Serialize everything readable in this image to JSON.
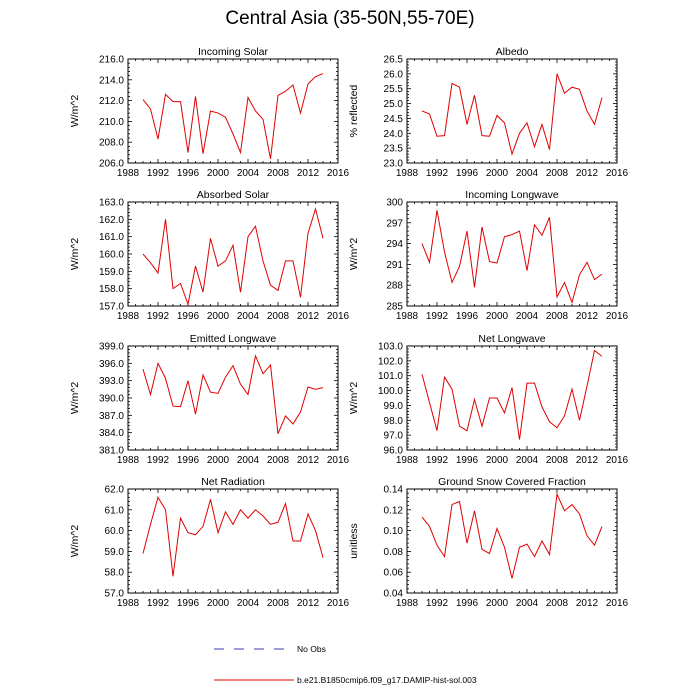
{
  "title": "Central Asia (35-50N,55-70E)",
  "legend": {
    "no_obs_label": "No Obs",
    "model_label": "b.e21.B1850cmip6.f09_g17.DAMIP-hist-sol.003",
    "no_obs_color": "#3b3bb0",
    "model_color": "#e00000"
  },
  "chart_data": [
    {
      "type": "line",
      "title": "Incoming Solar",
      "ylabel": "W/m^2",
      "xlim": [
        1988,
        2016
      ],
      "ylim": [
        206,
        216
      ],
      "xticks": [
        1988,
        1992,
        1996,
        2000,
        2004,
        2008,
        2012,
        2016
      ],
      "yticks": [
        "206.0",
        "208.0",
        "210.0",
        "212.0",
        "214.0",
        "216.0"
      ],
      "series": [
        {
          "color": "#e00000",
          "x": [
            1990,
            1991,
            1992,
            1993,
            1994,
            1995,
            1996,
            1997,
            1998,
            1999,
            2000,
            2001,
            2002,
            2003,
            2004,
            2005,
            2006,
            2007,
            2008,
            2009,
            2010,
            2011,
            2012,
            2013,
            2014
          ],
          "values": [
            212.1,
            211.2,
            208.3,
            212.6,
            211.9,
            211.9,
            207.0,
            212.4,
            206.9,
            211.0,
            210.8,
            210.4,
            208.8,
            207.0,
            212.3,
            211.0,
            210.2,
            206.4,
            212.5,
            212.9,
            213.5,
            210.8,
            213.6,
            214.3,
            214.6
          ]
        }
      ]
    },
    {
      "type": "line",
      "title": "Albedo",
      "ylabel": "% reflected",
      "xlim": [
        1988,
        2016
      ],
      "ylim": [
        23.0,
        26.5
      ],
      "xticks": [
        1988,
        1992,
        1996,
        2000,
        2004,
        2008,
        2012,
        2016
      ],
      "yticks": [
        "23.0",
        "23.5",
        "24.0",
        "24.5",
        "25.0",
        "25.5",
        "26.0",
        "26.5"
      ],
      "series": [
        {
          "color": "#e00000",
          "x": [
            1990,
            1991,
            1992,
            1993,
            1994,
            1995,
            1996,
            1997,
            1998,
            1999,
            2000,
            2001,
            2002,
            2003,
            2004,
            2005,
            2006,
            2007,
            2008,
            2009,
            2010,
            2011,
            2012,
            2013,
            2014
          ],
          "values": [
            24.75,
            24.65,
            23.9,
            23.92,
            25.68,
            25.55,
            24.3,
            25.28,
            23.92,
            23.9,
            24.6,
            24.35,
            23.3,
            24.0,
            24.35,
            23.55,
            24.3,
            23.45,
            26.0,
            25.35,
            25.55,
            25.48,
            24.75,
            24.3,
            25.2
          ]
        }
      ]
    },
    {
      "type": "line",
      "title": "Absorbed Solar",
      "ylabel": "W/m^2",
      "xlim": [
        1988,
        2016
      ],
      "ylim": [
        157,
        163
      ],
      "xticks": [
        1988,
        1992,
        1996,
        2000,
        2004,
        2008,
        2012,
        2016
      ],
      "yticks": [
        "157.0",
        "158.0",
        "159.0",
        "160.0",
        "161.0",
        "162.0",
        "163.0"
      ],
      "series": [
        {
          "color": "#e00000",
          "x": [
            1990,
            1991,
            1992,
            1993,
            1994,
            1995,
            1996,
            1997,
            1998,
            1999,
            2000,
            2001,
            2002,
            2003,
            2004,
            2005,
            2006,
            2007,
            2008,
            2009,
            2010,
            2011,
            2012,
            2013,
            2014
          ],
          "values": [
            160.0,
            159.5,
            158.9,
            162.0,
            158.0,
            158.3,
            157.1,
            159.3,
            157.8,
            160.9,
            159.3,
            159.6,
            160.5,
            157.8,
            161.0,
            161.6,
            159.6,
            158.2,
            157.9,
            159.6,
            159.6,
            157.5,
            161.2,
            162.6,
            160.9
          ]
        }
      ]
    },
    {
      "type": "line",
      "title": "Incoming Longwave",
      "ylabel": "W/m^2",
      "xlim": [
        1988,
        2016
      ],
      "ylim": [
        285,
        300
      ],
      "xticks": [
        1988,
        1992,
        1996,
        2000,
        2004,
        2008,
        2012,
        2016
      ],
      "yticks": [
        "285",
        "288",
        "291",
        "294",
        "297",
        "300"
      ],
      "series": [
        {
          "color": "#e00000",
          "x": [
            1990,
            1991,
            1992,
            1993,
            1994,
            1995,
            1996,
            1997,
            1998,
            1999,
            2000,
            2001,
            2002,
            2003,
            2004,
            2005,
            2006,
            2007,
            2008,
            2009,
            2010,
            2011,
            2012,
            2013,
            2014
          ],
          "values": [
            294.0,
            291.3,
            298.8,
            292.8,
            288.4,
            290.7,
            295.8,
            287.7,
            296.4,
            291.4,
            291.2,
            295.0,
            295.3,
            295.8,
            290.1,
            296.7,
            295.2,
            297.8,
            286.3,
            288.4,
            285.5,
            289.5,
            291.3,
            288.8,
            289.6
          ]
        }
      ]
    },
    {
      "type": "line",
      "title": "Emitted Longwave",
      "ylabel": "W/m^2",
      "xlim": [
        1988,
        2016
      ],
      "ylim": [
        381,
        399
      ],
      "xticks": [
        1988,
        1992,
        1996,
        2000,
        2004,
        2008,
        2012,
        2016
      ],
      "yticks": [
        "381.0",
        "384.0",
        "387.0",
        "390.0",
        "393.0",
        "396.0",
        "399.0"
      ],
      "series": [
        {
          "color": "#e00000",
          "x": [
            1990,
            1991,
            1992,
            1993,
            1994,
            1995,
            1996,
            1997,
            1998,
            1999,
            2000,
            2001,
            2002,
            2003,
            2004,
            2005,
            2006,
            2007,
            2008,
            2009,
            2010,
            2011,
            2012,
            2013,
            2014
          ],
          "values": [
            395.0,
            390.6,
            396.0,
            393.4,
            388.6,
            388.5,
            393.0,
            387.2,
            394.0,
            391.0,
            390.8,
            393.6,
            395.6,
            392.4,
            390.6,
            397.3,
            394.2,
            395.7,
            383.8,
            386.9,
            385.5,
            387.6,
            391.9,
            391.5,
            391.8
          ]
        }
      ]
    },
    {
      "type": "line",
      "title": "Net Longwave",
      "ylabel": "W/m^2",
      "xlim": [
        1988,
        2016
      ],
      "ylim": [
        96,
        103
      ],
      "xticks": [
        1988,
        1992,
        1996,
        2000,
        2004,
        2008,
        2012,
        2016
      ],
      "yticks": [
        "96.0",
        "97.0",
        "98.0",
        "99.0",
        "100.0",
        "101.0",
        "102.0",
        "103.0"
      ],
      "series": [
        {
          "color": "#e00000",
          "x": [
            1990,
            1991,
            1992,
            1993,
            1994,
            1995,
            1996,
            1997,
            1998,
            1999,
            2000,
            2001,
            2002,
            2003,
            2004,
            2005,
            2006,
            2007,
            2008,
            2009,
            2010,
            2011,
            2012,
            2013,
            2014
          ],
          "values": [
            101.1,
            99.2,
            97.3,
            100.9,
            100.1,
            97.6,
            97.3,
            99.4,
            97.6,
            99.5,
            99.5,
            98.5,
            100.2,
            96.7,
            100.5,
            100.5,
            98.9,
            97.9,
            97.5,
            98.3,
            100.1,
            98.0,
            100.3,
            102.7,
            102.3
          ]
        }
      ]
    },
    {
      "type": "line",
      "title": "Net Radiation",
      "ylabel": "W/m^2",
      "xlim": [
        1988,
        2016
      ],
      "ylim": [
        57,
        62
      ],
      "xticks": [
        1988,
        1992,
        1996,
        2000,
        2004,
        2008,
        2012,
        2016
      ],
      "yticks": [
        "57.0",
        "58.0",
        "59.0",
        "60.0",
        "61.0",
        "62.0"
      ],
      "series": [
        {
          "color": "#e00000",
          "x": [
            1990,
            1991,
            1992,
            1993,
            1994,
            1995,
            1996,
            1997,
            1998,
            1999,
            2000,
            2001,
            2002,
            2003,
            2004,
            2005,
            2006,
            2007,
            2008,
            2009,
            2010,
            2011,
            2012,
            2013,
            2014
          ],
          "values": [
            58.9,
            60.3,
            61.6,
            61.0,
            57.8,
            60.6,
            59.9,
            59.8,
            60.2,
            61.5,
            59.9,
            60.9,
            60.3,
            61.0,
            60.6,
            61.0,
            60.7,
            60.3,
            60.4,
            61.3,
            59.5,
            59.5,
            60.8,
            60.0,
            58.7
          ]
        }
      ]
    },
    {
      "type": "line",
      "title": "Ground Snow Covered Fraction",
      "ylabel": "unitless",
      "xlim": [
        1988,
        2016
      ],
      "ylim": [
        0.04,
        0.14
      ],
      "xticks": [
        1988,
        1992,
        1996,
        2000,
        2004,
        2008,
        2012,
        2016
      ],
      "yticks": [
        "0.04",
        "0.06",
        "0.08",
        "0.10",
        "0.12",
        "0.14"
      ],
      "series": [
        {
          "color": "#e00000",
          "x": [
            1990,
            1991,
            1992,
            1993,
            1994,
            1995,
            1996,
            1997,
            1998,
            1999,
            2000,
            2001,
            2002,
            2003,
            2004,
            2005,
            2006,
            2007,
            2008,
            2009,
            2010,
            2011,
            2012,
            2013,
            2014
          ],
          "values": [
            0.113,
            0.104,
            0.086,
            0.075,
            0.125,
            0.128,
            0.088,
            0.119,
            0.082,
            0.078,
            0.102,
            0.084,
            0.054,
            0.084,
            0.087,
            0.075,
            0.09,
            0.077,
            0.135,
            0.119,
            0.125,
            0.116,
            0.095,
            0.086,
            0.104
          ]
        }
      ]
    }
  ]
}
